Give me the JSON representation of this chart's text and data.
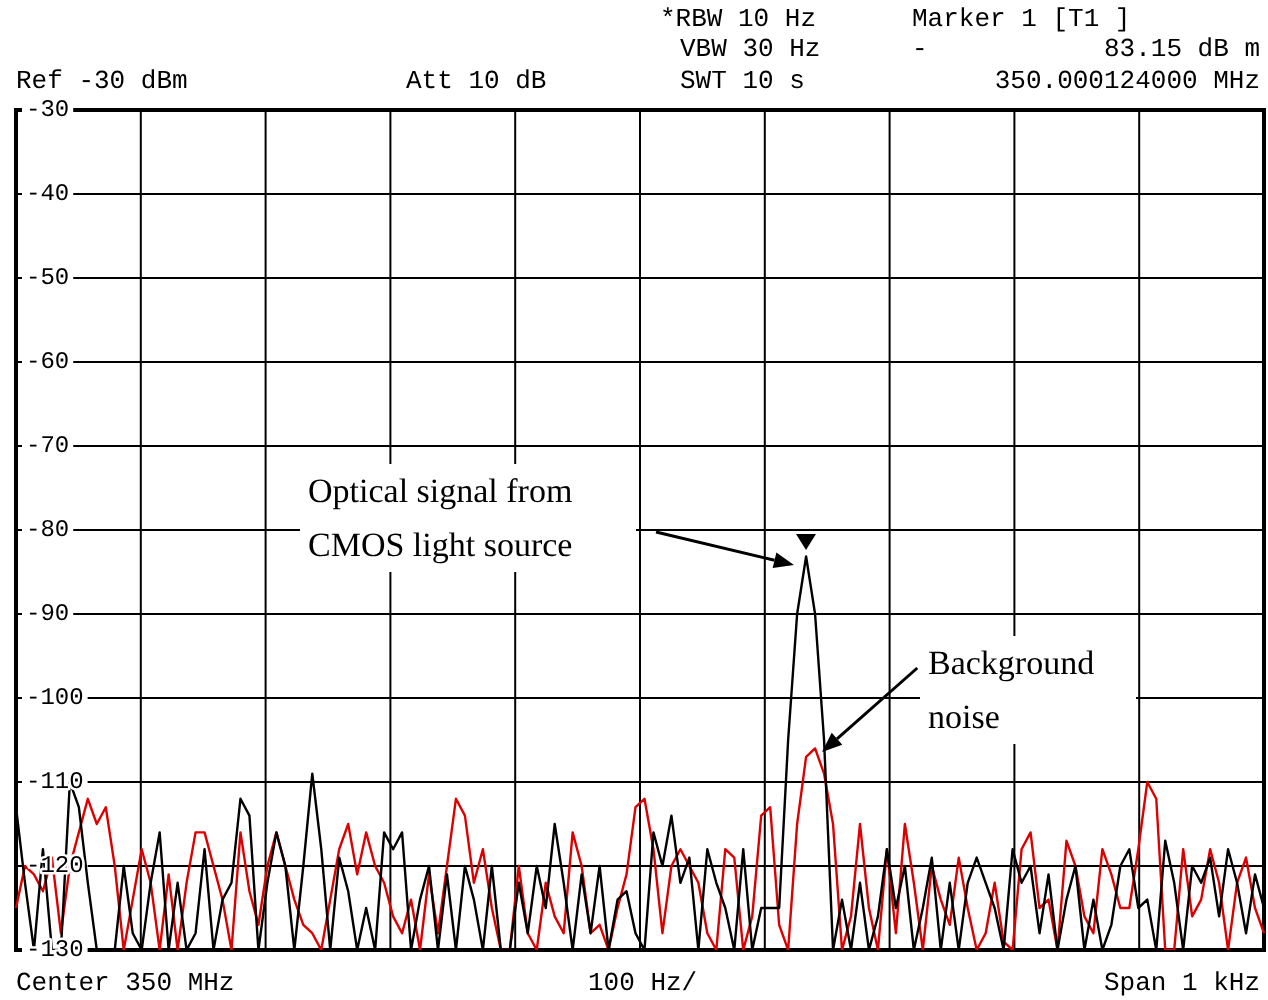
{
  "chart_data": {
    "type": "line",
    "annotations": [
      "*RBW 10 Hz",
      "Marker 1 [T1 ]",
      "VBW 30 Hz",
      "-",
      "83.15 dB m",
      "Ref -30 dBm",
      "Att 10 dB",
      "SWT 10 s",
      "350.000124000 MHz",
      "Center 350 MHz",
      "100 Hz/",
      "Span 1 kHz",
      "Optical signal from CMOS light source",
      "Background noise"
    ],
    "categories": [
      null,
      null,
      null,
      null,
      null,
      null,
      null,
      null,
      null,
      null,
      null,
      null,
      null,
      null,
      null,
      null,
      null,
      null,
      null,
      null,
      null,
      null,
      null,
      null,
      null,
      null,
      null,
      null,
      null,
      null,
      null,
      null,
      null,
      null,
      null,
      null,
      null,
      null,
      null,
      null,
      null,
      null,
      null,
      null,
      null,
      null,
      null,
      null,
      null,
      null,
      null,
      null,
      null,
      null,
      null,
      null,
      null,
      null,
      null,
      null,
      null,
      null,
      null,
      null,
      null,
      null,
      null,
      null,
      null,
      null,
      null,
      null,
      null,
      null,
      null,
      null,
      null,
      null,
      null,
      null,
      null,
      null,
      null,
      null,
      null,
      null,
      null,
      null,
      null,
      null,
      null,
      null,
      null,
      null,
      null,
      null,
      null,
      null,
      null,
      null,
      null,
      null,
      null,
      null,
      null,
      null,
      null,
      null,
      null,
      null,
      null,
      null,
      null,
      null,
      null,
      null,
      null,
      null,
      null,
      null,
      null,
      null,
      null,
      null,
      null,
      null,
      null,
      null,
      null,
      null,
      null,
      null,
      null,
      null,
      null,
      null,
      null,
      null,
      null,
      null
    ],
    "ylim": [
      -130,
      -30
    ],
    "yticks": [
      -30,
      -40,
      -50,
      -60,
      -70,
      -80,
      -90,
      -100,
      -110,
      -120,
      -130
    ],
    "grid": true,
    "legend": false,
    "marker": "none",
    "tick_labels": "y",
    "series": [
      {
        "color": "#000000",
        "values": [
          -113,
          -122,
          -130,
          -118,
          -130,
          -130,
          -110,
          -113,
          -122,
          -130,
          -130,
          -130,
          -120,
          -128,
          -130,
          -122,
          -116,
          -130,
          -122,
          -130,
          -128,
          -118,
          -130,
          -124,
          -122,
          -112,
          -114,
          -130,
          -122,
          -116,
          -120,
          -130,
          -120,
          -109,
          -118,
          -130,
          -119,
          -123,
          -130,
          -125,
          -130,
          -116,
          -118,
          -116,
          -130,
          -124,
          -120,
          -130,
          -121,
          -130,
          -120,
          -124,
          -130,
          -120,
          -130,
          -130,
          -122,
          -128,
          -120,
          -125,
          -115,
          -122,
          -130,
          -121,
          -128,
          -120,
          -130,
          -124,
          -123,
          -128,
          -130,
          -116,
          -120,
          -114,
          -122,
          -119,
          -130,
          -118,
          -122,
          -125,
          -130,
          -118,
          -130,
          -125,
          -125,
          -125,
          -105,
          -90,
          -83.15,
          -90,
          -105,
          -130,
          -124,
          -130,
          -122,
          -130,
          -126,
          -118,
          -125,
          -120,
          -130,
          -125,
          -119,
          -130,
          -122,
          -130,
          -122,
          -119,
          -122,
          -125,
          -130,
          -118,
          -122,
          -120,
          -128,
          -121,
          -130,
          -124,
          -120,
          -130,
          -124,
          -130,
          -127,
          -120,
          -118,
          -125,
          -124,
          -130,
          -117,
          -122,
          -130,
          -120,
          -122,
          -119,
          -126,
          -118,
          -122,
          -128,
          -121,
          -125
        ]
      },
      {
        "color": "#dd0000",
        "values": [
          -125,
          -120,
          -121,
          -123,
          -119,
          -128,
          -120,
          -116,
          -112,
          -115,
          -113,
          -120,
          -130,
          -124,
          -118,
          -122,
          -130,
          -121,
          -130,
          -122,
          -116,
          -116,
          -120,
          -124,
          -130,
          -116,
          -123,
          -127,
          -120,
          -116,
          -120,
          -124,
          -127,
          -128,
          -130,
          -124,
          -118,
          -115,
          -121,
          -116,
          -120,
          -122,
          -126,
          -128,
          -124,
          -130,
          -121,
          -128,
          -120,
          -112,
          -114,
          -122,
          -118,
          -125,
          -130,
          -130,
          -120,
          -128,
          -130,
          -122,
          -126,
          -128,
          -116,
          -120,
          -128,
          -127,
          -130,
          -125,
          -121,
          -113,
          -112,
          -118,
          -128,
          -120,
          -118,
          -120,
          -122,
          -128,
          -130,
          -118,
          -119,
          -130,
          -126,
          -114,
          -113,
          -127,
          -130,
          -115,
          -107,
          -106,
          -109,
          -115,
          -130,
          -126,
          -115,
          -125,
          -130,
          -118,
          -128,
          -115,
          -122,
          -130,
          -120,
          -124,
          -127,
          -119,
          -125,
          -130,
          -128,
          -122,
          -129,
          -130,
          -118,
          -116,
          -125,
          -124,
          -130,
          -117,
          -120,
          -126,
          -128,
          -118,
          -121,
          -125,
          -125,
          -118,
          -110,
          -112,
          -130,
          -130,
          -118,
          -126,
          -124,
          -118,
          -122,
          -130,
          -122,
          -119,
          -125,
          -128
        ]
      }
    ]
  }
}
